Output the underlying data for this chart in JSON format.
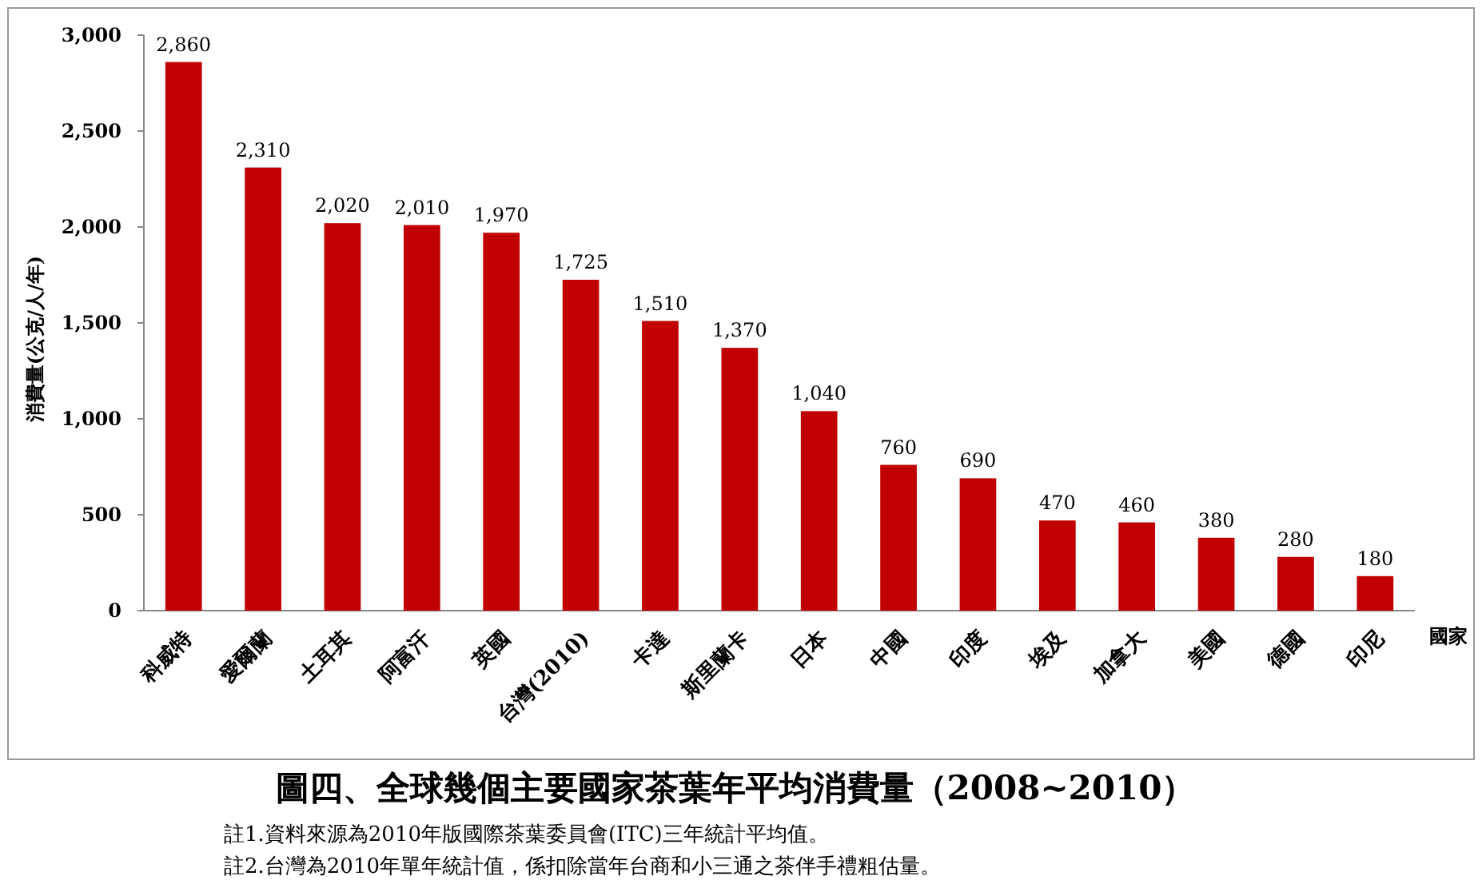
{
  "chart_data": {
    "type": "bar",
    "title": "圖四、全球幾個主要國家茶葉年平均消費量（2008~2010）",
    "xlabel": "國家",
    "ylabel": "消費量(公克/人/年)",
    "categories": [
      "科威特",
      "愛爾蘭",
      "土耳其",
      "阿富汗",
      "英國",
      "台灣(2010)",
      "卡達",
      "斯里蘭卡",
      "日本",
      "中國",
      "印度",
      "埃及",
      "加拿大",
      "美國",
      "德國",
      "印尼"
    ],
    "values": [
      2860,
      2310,
      2020,
      2010,
      1970,
      1725,
      1510,
      1370,
      1040,
      760,
      690,
      470,
      460,
      380,
      280,
      180
    ],
    "value_labels": [
      "2,860",
      "2,310",
      "2,020",
      "2,010",
      "1,970",
      "1,725",
      "1,510",
      "1,370",
      "1,040",
      "760",
      "690",
      "470",
      "460",
      "380",
      "280",
      "180"
    ],
    "color": "#c00000",
    "ylim": [
      0,
      3000
    ],
    "yticks": [
      {
        "value": 0,
        "label": "0"
      },
      {
        "value": 500,
        "label": "500"
      },
      {
        "value": 1000,
        "label": "1,000"
      },
      {
        "value": 1500,
        "label": "1,500"
      },
      {
        "value": 2000,
        "label": "2,000"
      },
      {
        "value": 2500,
        "label": "2,500"
      },
      {
        "value": 3000,
        "label": "3,000"
      }
    ],
    "grid": false,
    "annotations": [
      "註1.資料來源為2010年版國際茶葉委員會(ITC)三年統計平均值。",
      "註2.台灣為2010年單年統計值，係扣除當年台商和小三通之茶伴手禮粗估量。"
    ]
  }
}
